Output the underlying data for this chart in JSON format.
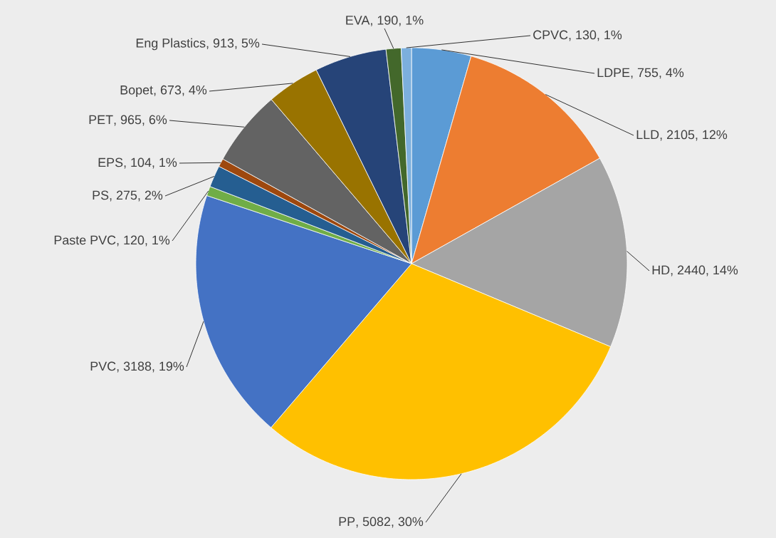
{
  "chart_data": {
    "type": "pie",
    "categories": [
      "LDPE",
      "LLD",
      "HD",
      "PP",
      "PVC",
      "Paste PVC",
      "PS",
      "EPS",
      "PET",
      "Bopet",
      "Eng Plastics",
      "EVA",
      "CPVC"
    ],
    "values": [
      755,
      2105,
      2440,
      5082,
      3188,
      120,
      275,
      104,
      965,
      673,
      913,
      190,
      130
    ],
    "value_labels": [
      ", 755, 4%",
      ", 2105, 12%",
      ", 2440, 14%",
      ", 5082, 30%",
      ", 3188, 19%",
      ", 120, 1%",
      ", 275, 2%",
      ", 104, 1%",
      ", 965, 6%",
      ", 673, 4%",
      ", 913, 5%",
      ", 190, 1%",
      ", 130, 1%"
    ],
    "colors": [
      "#5b9bd5",
      "#ed7d31",
      "#a5a5a5",
      "#ffc000",
      "#4472c4",
      "#70ad47",
      "#255e91",
      "#9e480e",
      "#636363",
      "#997300",
      "#264478",
      "#43682b",
      "#7cafdd"
    ]
  }
}
